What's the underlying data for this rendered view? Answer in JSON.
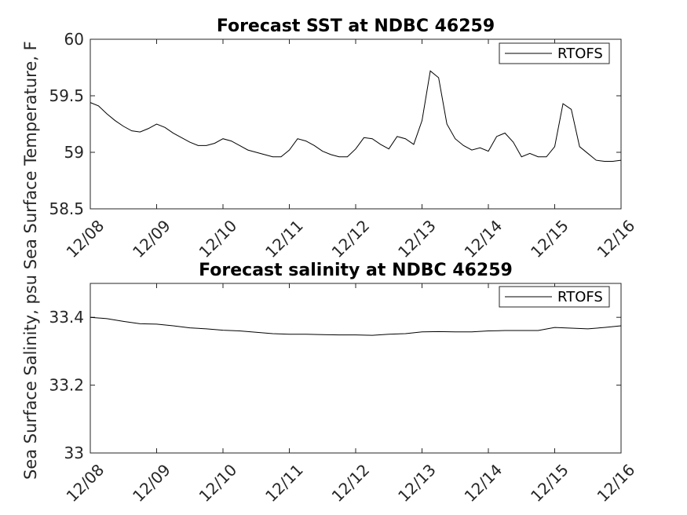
{
  "chart_data": [
    {
      "type": "line",
      "title": "Forecast SST at NDBC 46259",
      "ylabel": "Sea Surface Temperature, F",
      "ylim": [
        58.5,
        60
      ],
      "yticks": [
        "58.5",
        "59",
        "59.5",
        "60"
      ],
      "xlim": [
        0,
        8
      ],
      "xticks": [
        "12/08",
        "12/09",
        "12/10",
        "12/11",
        "12/12",
        "12/13",
        "12/14",
        "12/15",
        "12/16"
      ],
      "legend": "top-right",
      "grid": false,
      "series": [
        {
          "name": "RTOFS",
          "color": "#000000",
          "x": [
            0,
            0.125,
            0.25,
            0.375,
            0.5,
            0.625,
            0.75,
            0.875,
            1.0,
            1.125,
            1.25,
            1.375,
            1.5,
            1.625,
            1.75,
            1.875,
            2.0,
            2.125,
            2.25,
            2.375,
            2.5,
            2.625,
            2.75,
            2.875,
            3.0,
            3.125,
            3.25,
            3.375,
            3.5,
            3.625,
            3.75,
            3.875,
            4.0,
            4.125,
            4.25,
            4.375,
            4.5,
            4.625,
            4.75,
            4.875,
            5.0,
            5.125,
            5.25,
            5.375,
            5.5,
            5.625,
            5.75,
            5.875,
            6.0,
            6.125,
            6.25,
            6.375,
            6.5,
            6.625,
            6.75,
            6.875,
            7.0,
            7.125,
            7.25,
            7.375,
            7.5,
            7.625,
            7.75,
            7.875,
            8.0
          ],
          "values": [
            59.44,
            59.41,
            59.34,
            59.28,
            59.23,
            59.19,
            59.18,
            59.21,
            59.25,
            59.22,
            59.17,
            59.13,
            59.09,
            59.06,
            59.06,
            59.08,
            59.12,
            59.1,
            59.06,
            59.02,
            59.0,
            58.98,
            58.96,
            58.96,
            59.02,
            59.12,
            59.1,
            59.06,
            59.01,
            58.98,
            58.96,
            58.96,
            59.03,
            59.13,
            59.12,
            59.07,
            59.03,
            59.14,
            59.12,
            59.07,
            59.28,
            59.72,
            59.66,
            59.25,
            59.12,
            59.06,
            59.02,
            59.04,
            59.01,
            59.14,
            59.17,
            59.09,
            58.96,
            58.99,
            58.96,
            58.96,
            59.05,
            59.43,
            59.38,
            59.05,
            58.99,
            58.93,
            58.92,
            58.92,
            58.93
          ]
        }
      ]
    },
    {
      "type": "line",
      "title": "Forecast salinity at NDBC 46259",
      "ylabel": "Sea Surface Salinity, psu",
      "ylim": [
        33,
        33.5
      ],
      "yticks": [
        "33",
        "33.2",
        "33.4"
      ],
      "xlim": [
        0,
        8
      ],
      "xticks": [
        "12/08",
        "12/09",
        "12/10",
        "12/11",
        "12/12",
        "12/13",
        "12/14",
        "12/15",
        "12/16"
      ],
      "legend": "top-right",
      "grid": false,
      "series": [
        {
          "name": "RTOFS",
          "color": "#000000",
          "x": [
            0,
            0.25,
            0.5,
            0.75,
            1.0,
            1.25,
            1.5,
            1.75,
            2.0,
            2.25,
            2.5,
            2.75,
            3.0,
            3.25,
            3.5,
            3.75,
            4.0,
            4.25,
            4.5,
            4.75,
            5.0,
            5.25,
            5.5,
            5.75,
            6.0,
            6.25,
            6.5,
            6.75,
            7.0,
            7.25,
            7.5,
            7.75,
            8.0
          ],
          "values": [
            33.4,
            33.396,
            33.388,
            33.381,
            33.38,
            33.375,
            33.369,
            33.366,
            33.362,
            33.36,
            33.356,
            33.352,
            33.35,
            33.35,
            33.349,
            33.348,
            33.348,
            33.347,
            33.35,
            33.352,
            33.357,
            33.358,
            33.357,
            33.357,
            33.36,
            33.361,
            33.361,
            33.361,
            33.37,
            33.368,
            33.366,
            33.37,
            33.375
          ]
        }
      ]
    }
  ],
  "header": {
    "ylabel_combined": "Sea Surface Salinity, psu Sea Surface Temperature, F"
  }
}
